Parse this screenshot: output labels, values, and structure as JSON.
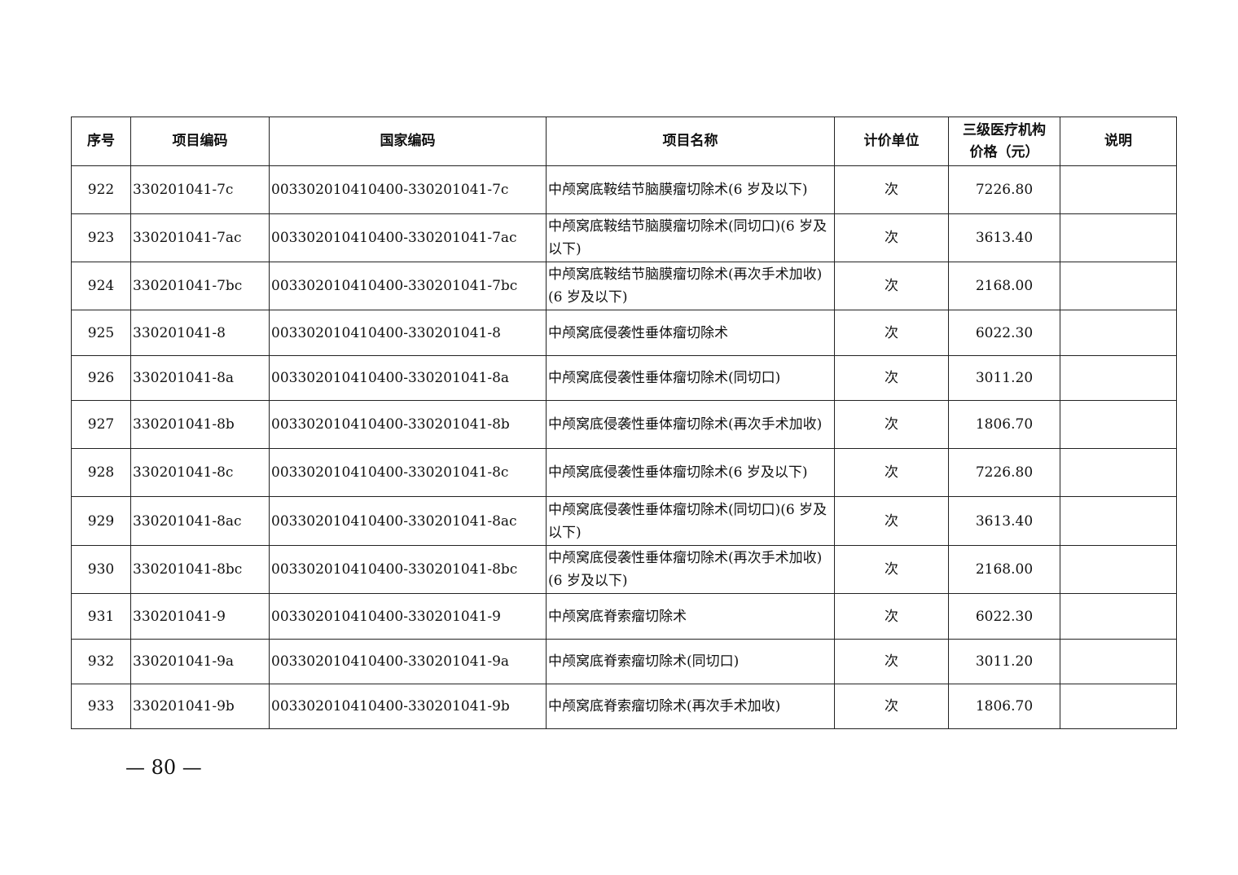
{
  "table": {
    "headers": [
      "序号",
      "项目编码",
      "国家编码",
      "项目名称",
      "计价单位",
      "三级医疗机构价格（元）",
      "说明"
    ],
    "header_price_line1": "三级医疗机构",
    "header_price_line2": "价格（元）",
    "rows": [
      {
        "no": "922",
        "code": "330201041-7c",
        "national": "003302010410400-330201041-7c",
        "name": "中颅窝底鞍结节脑膜瘤切除术(6 岁及以下)",
        "unit": "次",
        "price": "7226.80",
        "note": ""
      },
      {
        "no": "923",
        "code": "330201041-7ac",
        "national": "003302010410400-330201041-7ac",
        "name": "中颅窝底鞍结节脑膜瘤切除术(同切口)(6 岁及以下)",
        "unit": "次",
        "price": "3613.40",
        "note": ""
      },
      {
        "no": "924",
        "code": "330201041-7bc",
        "national": "003302010410400-330201041-7bc",
        "name": "中颅窝底鞍结节脑膜瘤切除术(再次手术加收)(6 岁及以下)",
        "unit": "次",
        "price": "2168.00",
        "note": ""
      },
      {
        "no": "925",
        "code": "330201041-8",
        "national": "003302010410400-330201041-8",
        "name": "中颅窝底侵袭性垂体瘤切除术",
        "unit": "次",
        "price": "6022.30",
        "note": ""
      },
      {
        "no": "926",
        "code": "330201041-8a",
        "national": "003302010410400-330201041-8a",
        "name": "中颅窝底侵袭性垂体瘤切除术(同切口)",
        "unit": "次",
        "price": "3011.20",
        "note": ""
      },
      {
        "no": "927",
        "code": "330201041-8b",
        "national": "003302010410400-330201041-8b",
        "name": "中颅窝底侵袭性垂体瘤切除术(再次手术加收)",
        "unit": "次",
        "price": "1806.70",
        "note": ""
      },
      {
        "no": "928",
        "code": "330201041-8c",
        "national": "003302010410400-330201041-8c",
        "name": "中颅窝底侵袭性垂体瘤切除术(6 岁及以下)",
        "unit": "次",
        "price": "7226.80",
        "note": ""
      },
      {
        "no": "929",
        "code": "330201041-8ac",
        "national": "003302010410400-330201041-8ac",
        "name": "中颅窝底侵袭性垂体瘤切除术(同切口)(6 岁及以下)",
        "unit": "次",
        "price": "3613.40",
        "note": ""
      },
      {
        "no": "930",
        "code": "330201041-8bc",
        "national": "003302010410400-330201041-8bc",
        "name": "中颅窝底侵袭性垂体瘤切除术(再次手术加收)(6 岁及以下)",
        "unit": "次",
        "price": "2168.00",
        "note": ""
      },
      {
        "no": "931",
        "code": "330201041-9",
        "national": "003302010410400-330201041-9",
        "name": "中颅窝底脊索瘤切除术",
        "unit": "次",
        "price": "6022.30",
        "note": ""
      },
      {
        "no": "932",
        "code": "330201041-9a",
        "national": "003302010410400-330201041-9a",
        "name": "中颅窝底脊索瘤切除术(同切口)",
        "unit": "次",
        "price": "3011.20",
        "note": ""
      },
      {
        "no": "933",
        "code": "330201041-9b",
        "national": "003302010410400-330201041-9b",
        "name": "中颅窝底脊索瘤切除术(再次手术加收)",
        "unit": "次",
        "price": "1806.70",
        "note": ""
      }
    ]
  },
  "footer": {
    "page_number": "— 80 —"
  }
}
